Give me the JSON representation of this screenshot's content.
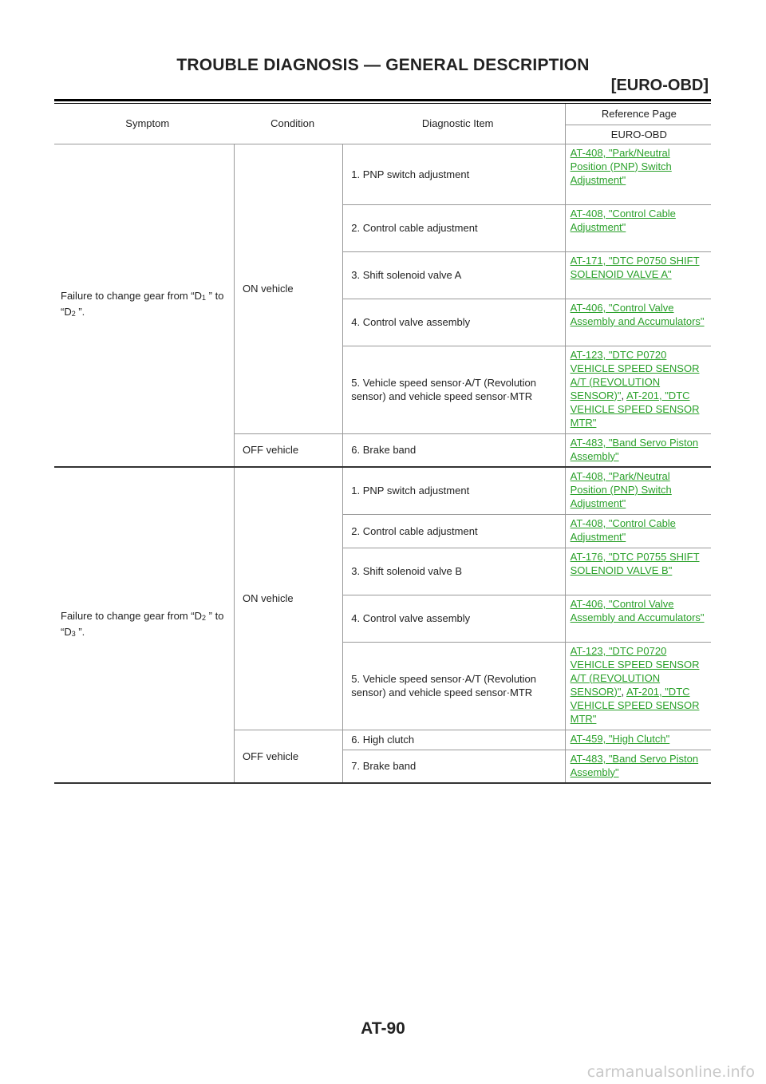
{
  "header": {
    "title": "TROUBLE DIAGNOSIS — GENERAL DESCRIPTION",
    "section": "[EURO-OBD]"
  },
  "table": {
    "headers": {
      "symptom": "Symptom",
      "condition": "Condition",
      "diagnostic_item": "Diagnostic Item",
      "reference_page": "Reference Page",
      "euro_obd": "EURO-OBD"
    },
    "group1": {
      "symptom_pre": "Failure to change gear from “D",
      "symptom_sub1": "1",
      "symptom_mid": " ” to “D",
      "symptom_sub2": "2",
      "symptom_post": " ”.",
      "on_label": "ON vehicle",
      "off_label": "OFF vehicle",
      "items": [
        {
          "item": "1. PNP switch adjustment",
          "ref": "AT-408, \"Park/Neutral Position (PNP) Switch Adjustment\""
        },
        {
          "item": "2. Control cable adjustment",
          "ref": "AT-408, \"Control Cable Adjustment\""
        },
        {
          "item": "3. Shift solenoid valve A",
          "ref": "AT-171, \"DTC P0750 SHIFT SOLENOID VALVE A\""
        },
        {
          "item": "4. Control valve assembly",
          "ref": "AT-406, \"Control Valve Assembly and Accumulators\""
        },
        {
          "item": "5. Vehicle speed sensor·A/T (Revolution sensor) and vehicle speed sensor·MTR",
          "ref": "AT-123, \"DTC P0720 VEHICLE SPEED SENSOR A/T (REVOLUTION SENSOR)\"",
          "ref_sep": ", ",
          "ref2": "AT-201, \"DTC VEHICLE SPEED SENSOR MTR\""
        },
        {
          "item": "6. Brake band",
          "ref": "AT-483, \"Band Servo Piston Assembly\""
        }
      ]
    },
    "group2": {
      "symptom_pre": "Failure to change gear from “D",
      "symptom_sub1": "2",
      "symptom_mid": " ” to “D",
      "symptom_sub2": "3",
      "symptom_post": " ”.",
      "on_label": "ON vehicle",
      "off_label": "OFF vehicle",
      "items": [
        {
          "item": "1. PNP switch adjustment",
          "ref": "AT-408, \"Park/Neutral Position (PNP) Switch Adjustment\""
        },
        {
          "item": "2. Control cable adjustment",
          "ref": "AT-408, \"Control Cable Adjustment\""
        },
        {
          "item": "3. Shift solenoid valve B",
          "ref": "AT-176, \"DTC P0755 SHIFT SOLENOID VALVE B\""
        },
        {
          "item": "4. Control valve assembly",
          "ref": "AT-406, \"Control Valve Assembly and Accumulators\""
        },
        {
          "item": "5. Vehicle speed sensor·A/T (Revolution sensor) and vehicle speed sensor·MTR",
          "ref": "AT-123, \"DTC P0720 VEHICLE SPEED SENSOR A/T (REVOLUTION SENSOR)\"",
          "ref_sep": ", ",
          "ref2": "AT-201, \"DTC VEHICLE SPEED SENSOR MTR\""
        },
        {
          "item": "6. High clutch",
          "ref": "AT-459, \"High Clutch\""
        },
        {
          "item": "7. Brake band",
          "ref": "AT-483, \"Band Servo Piston Assembly\""
        }
      ]
    }
  },
  "footer": {
    "page_number": "AT-90",
    "watermark": "carmanualsonline.info"
  },
  "colors": {
    "link": "#2aa02a"
  }
}
